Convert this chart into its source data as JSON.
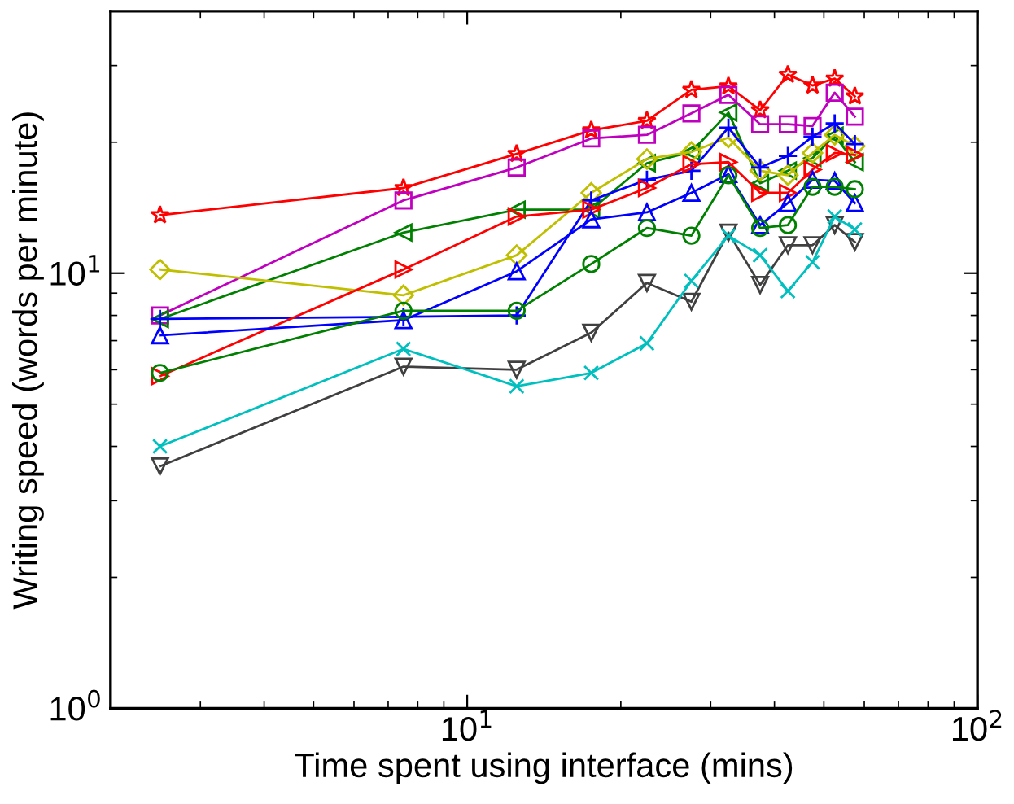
{
  "chart_data": {
    "type": "line",
    "xlabel": "Time spent using interface (mins)",
    "ylabel": "Writing speed (words per minute)",
    "log": "xy",
    "x": [
      2.5,
      7.5,
      12.5,
      17.5,
      22.5,
      27.5,
      32.5,
      37.5,
      42.5,
      47.5,
      52.5,
      57.5
    ],
    "xlim": [
      2,
      100
    ],
    "ylim": [
      1,
      40
    ],
    "xticks": [
      {
        "value": 10,
        "label": "10$^{1}$"
      },
      {
        "value": 100,
        "label": "10$^{2}$"
      }
    ],
    "yticks": [
      {
        "value": 1,
        "label": "10$^{0}$"
      },
      {
        "value": 10,
        "label": "10$^{1}$"
      }
    ],
    "grid": false,
    "line_style": "solid",
    "series": [
      {
        "color": "#ff0000",
        "marker": "star",
        "values": [
          13.6,
          15.7,
          18.8,
          21.3,
          22.4,
          26.4,
          26.9,
          23.7,
          28.6,
          27.0,
          28.0,
          25.5
        ]
      },
      {
        "color": "#bf00bf",
        "marker": "square",
        "values": [
          8.0,
          14.7,
          17.5,
          20.4,
          20.8,
          23.3,
          25.7,
          22.0,
          22.0,
          21.8,
          26.0,
          22.9
        ]
      },
      {
        "color": "#008000",
        "marker": "triangle-left",
        "values": [
          7.85,
          12.4,
          14.0,
          14.0,
          17.9,
          19.0,
          23.4,
          16.1,
          17.2,
          18.4,
          20.7,
          18.0
        ]
      },
      {
        "color": "#bfbf00",
        "marker": "diamond",
        "values": [
          10.2,
          8.9,
          11.0,
          15.3,
          18.3,
          19.0,
          20.5,
          17.2,
          16.8,
          18.9,
          20.8,
          19.6
        ]
      },
      {
        "color": "#0000ff",
        "marker": "plus",
        "values": [
          7.85,
          7.94,
          8.0,
          14.7,
          16.4,
          17.2,
          21.6,
          17.5,
          18.6,
          20.6,
          22.1,
          19.8
        ]
      },
      {
        "color": "#ff0000",
        "marker": "triangle-right",
        "values": [
          5.8,
          10.2,
          13.5,
          14.0,
          15.7,
          17.8,
          18.0,
          15.3,
          15.3,
          17.3,
          18.9,
          18.7
        ]
      },
      {
        "color": "#0000ff",
        "marker": "triangle",
        "values": [
          7.2,
          7.8,
          10.1,
          13.3,
          13.8,
          15.3,
          16.9,
          12.9,
          14.5,
          16.4,
          16.3,
          14.5
        ]
      },
      {
        "color": "#008000",
        "marker": "circle",
        "values": [
          5.9,
          8.2,
          8.2,
          10.5,
          12.7,
          12.2,
          16.8,
          12.7,
          12.9,
          15.8,
          15.8,
          15.6
        ]
      },
      {
        "color": "#404040",
        "marker": "triangle-down",
        "values": [
          3.6,
          6.1,
          6.0,
          7.3,
          9.5,
          8.6,
          12.4,
          9.4,
          11.6,
          11.6,
          12.9,
          11.8
        ]
      },
      {
        "color": "#00bfbf",
        "marker": "cross",
        "values": [
          4.0,
          6.7,
          5.5,
          5.9,
          6.9,
          9.6,
          12.2,
          11.0,
          9.1,
          10.6,
          13.5,
          12.6
        ]
      }
    ]
  }
}
